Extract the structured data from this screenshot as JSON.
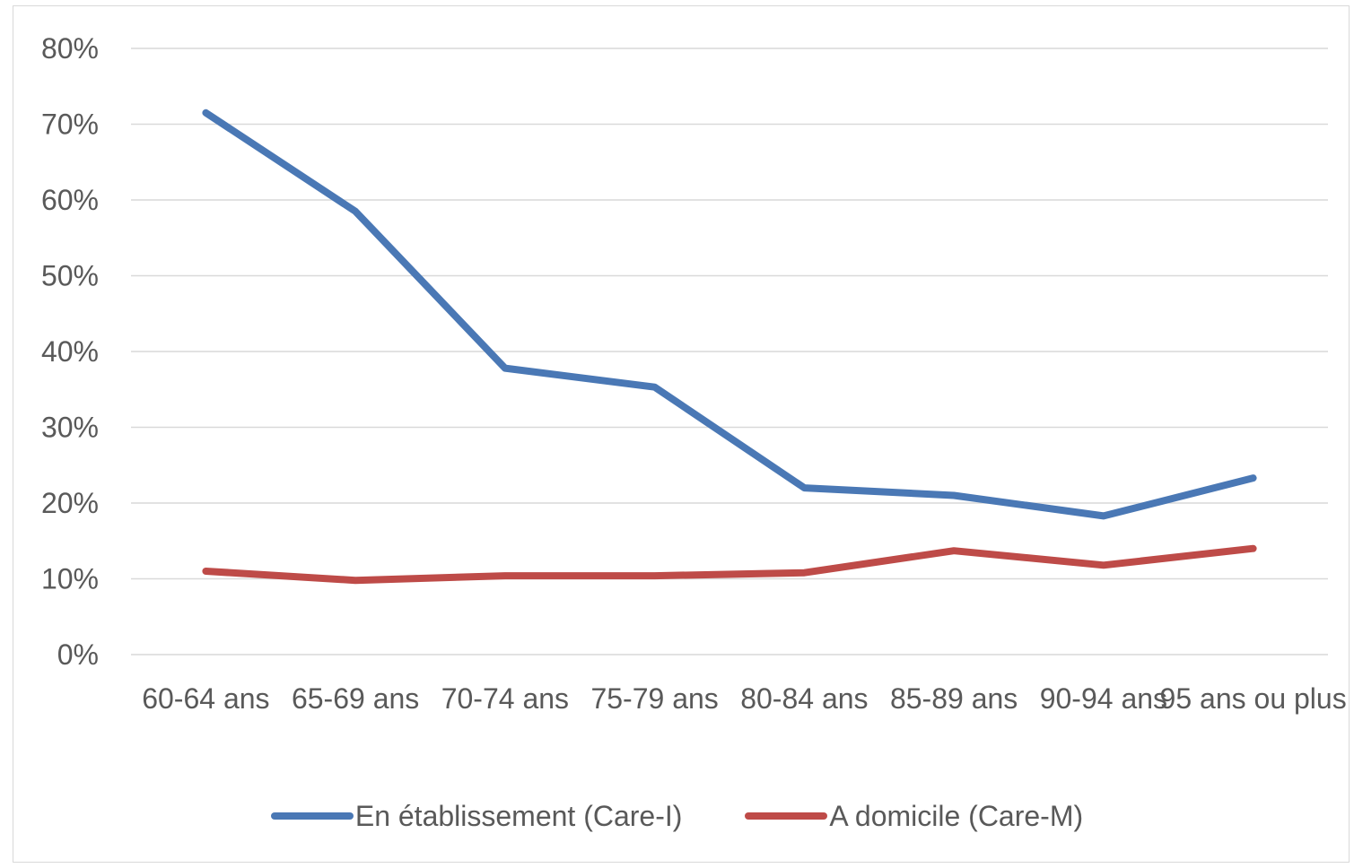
{
  "chart_data": {
    "type": "line",
    "categories": [
      "60-64 ans",
      "65-69 ans",
      "70-74 ans",
      "75-79 ans",
      "80-84 ans",
      "85-89 ans",
      "90-94 ans",
      "95 ans ou plus"
    ],
    "series": [
      {
        "name": "En établissement (Care-I)",
        "color": "#4a78b5",
        "values": [
          71.5,
          58.5,
          37.8,
          35.3,
          22.0,
          21.0,
          18.3,
          23.3
        ]
      },
      {
        "name": "A domicile (Care-M)",
        "color": "#be4b48",
        "values": [
          11.0,
          9.8,
          10.4,
          10.4,
          10.8,
          13.7,
          11.8,
          14.0
        ]
      }
    ],
    "yticks": [
      "0%",
      "10%",
      "20%",
      "30%",
      "40%",
      "50%",
      "60%",
      "70%",
      "80%"
    ],
    "ylim": [
      0,
      80
    ],
    "grid": true,
    "legend_position": "bottom",
    "title": "",
    "xlabel": "",
    "ylabel": ""
  }
}
